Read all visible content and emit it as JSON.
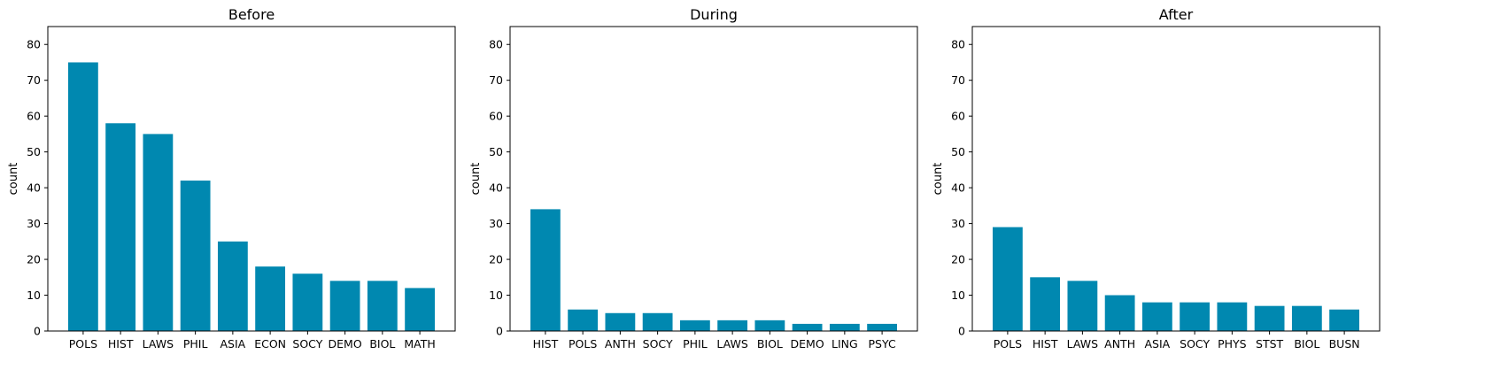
{
  "chart_data": [
    {
      "type": "bar",
      "title": "Before",
      "xlabel": "",
      "ylabel": "count",
      "ylim": [
        0,
        85
      ],
      "yticks": [
        0,
        10,
        20,
        30,
        40,
        50,
        60,
        70,
        80
      ],
      "categories": [
        "POLS",
        "HIST",
        "LAWS",
        "PHIL",
        "ASIA",
        "ECON",
        "SOCY",
        "DEMO",
        "BIOL",
        "MATH"
      ],
      "values": [
        75,
        58,
        55,
        42,
        25,
        18,
        16,
        14,
        14,
        12
      ],
      "bar_color": "#0088b0",
      "grid": false
    },
    {
      "type": "bar",
      "title": "During",
      "xlabel": "",
      "ylabel": "count",
      "ylim": [
        0,
        85
      ],
      "yticks": [
        0,
        10,
        20,
        30,
        40,
        50,
        60,
        70,
        80
      ],
      "categories": [
        "HIST",
        "POLS",
        "ANTH",
        "SOCY",
        "PHIL",
        "LAWS",
        "BIOL",
        "DEMO",
        "LING",
        "PSYC"
      ],
      "values": [
        34,
        6,
        5,
        5,
        3,
        3,
        3,
        2,
        2,
        2
      ],
      "bar_color": "#0088b0",
      "grid": false
    },
    {
      "type": "bar",
      "title": "After",
      "xlabel": "",
      "ylabel": "count",
      "ylim": [
        0,
        85
      ],
      "yticks": [
        0,
        10,
        20,
        30,
        40,
        50,
        60,
        70,
        80
      ],
      "categories": [
        "POLS",
        "HIST",
        "LAWS",
        "ANTH",
        "ASIA",
        "SOCY",
        "PHYS",
        "STST",
        "BIOL",
        "BUSN"
      ],
      "values": [
        29,
        15,
        14,
        10,
        8,
        8,
        8,
        7,
        7,
        6
      ],
      "bar_color": "#0088b0",
      "grid": false
    }
  ]
}
